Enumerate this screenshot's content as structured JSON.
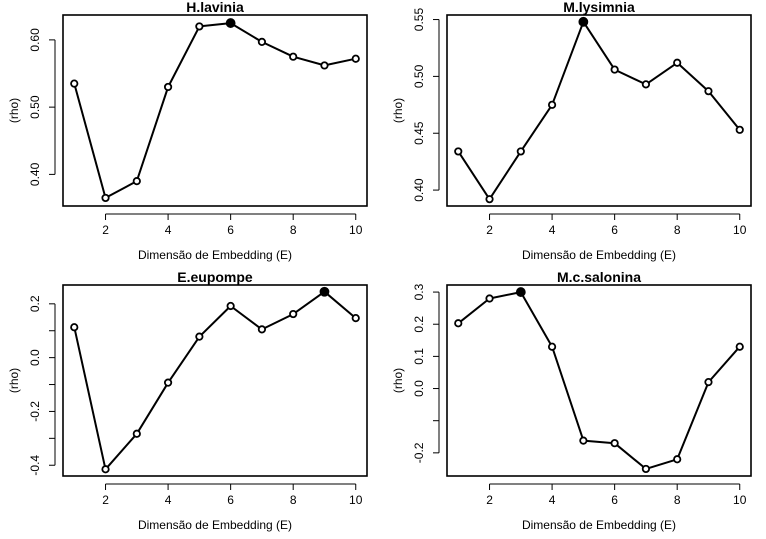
{
  "chart_data": [
    {
      "type": "line",
      "title": "H.lavinia",
      "xlabel": "Dimensão de Embedding (E)",
      "ylabel": "(rho)",
      "x": [
        1,
        2,
        3,
        4,
        5,
        6,
        7,
        8,
        9,
        10
      ],
      "series": [
        {
          "values": [
            0.535,
            0.365,
            0.39,
            0.53,
            0.62,
            0.625,
            0.597,
            0.575,
            0.562,
            0.572
          ]
        }
      ],
      "highlight_index": 5,
      "xlim": [
        0.64,
        10.36
      ],
      "ylim": [
        0.353,
        0.637
      ],
      "xticks": [
        2,
        4,
        6,
        8,
        10
      ],
      "xtick_labels": [
        "2",
        "4",
        "6",
        "8",
        "10"
      ],
      "yticks": [
        0.4,
        0.5,
        0.6
      ],
      "ytick_labels": [
        "0.40",
        "0.50",
        "0.60"
      ],
      "grid": false,
      "legend": "none"
    },
    {
      "type": "line",
      "title": "M.lysimnia",
      "xlabel": "Dimensão de Embedding (E)",
      "ylabel": "(rho)",
      "x": [
        1,
        2,
        3,
        4,
        5,
        6,
        7,
        8,
        9,
        10
      ],
      "series": [
        {
          "values": [
            0.434,
            0.392,
            0.434,
            0.475,
            0.548,
            0.506,
            0.493,
            0.512,
            0.487,
            0.453
          ]
        }
      ],
      "highlight_index": 4,
      "xlim": [
        0.64,
        10.36
      ],
      "ylim": [
        0.386,
        0.554
      ],
      "xticks": [
        2,
        4,
        6,
        8,
        10
      ],
      "xtick_labels": [
        "2",
        "4",
        "6",
        "8",
        "10"
      ],
      "yticks": [
        0.4,
        0.45,
        0.5,
        0.55
      ],
      "ytick_labels": [
        "0.40",
        "0.45",
        "0.50",
        "0.55"
      ],
      "grid": false,
      "legend": "none"
    },
    {
      "type": "line",
      "title": "E.eupompe",
      "xlabel": "Dimensão de Embedding (E)",
      "ylabel": "(rho)",
      "x": [
        1,
        2,
        3,
        4,
        5,
        6,
        7,
        8,
        9,
        10
      ],
      "series": [
        {
          "values": [
            0.113,
            -0.415,
            -0.283,
            -0.093,
            0.078,
            0.192,
            0.105,
            0.162,
            0.245,
            0.147
          ]
        }
      ],
      "highlight_index": 8,
      "xlim": [
        0.64,
        10.36
      ],
      "ylim": [
        -0.44,
        0.27
      ],
      "xticks": [
        2,
        4,
        6,
        8,
        10
      ],
      "xtick_labels": [
        "2",
        "4",
        "6",
        "8",
        "10"
      ],
      "yticks": [
        -0.4,
        -0.3,
        -0.2,
        -0.1,
        0.0,
        0.1,
        0.2
      ],
      "ytick_labels": [
        "-0.4",
        "",
        "-0.2",
        "",
        "0.0",
        "",
        "0.2"
      ],
      "grid": false,
      "legend": "none"
    },
    {
      "type": "line",
      "title": "M.c.salonina",
      "xlabel": "Dimensão de Embedding (E)",
      "ylabel": "(rho)",
      "x": [
        1,
        2,
        3,
        4,
        5,
        6,
        7,
        8,
        9,
        10
      ],
      "series": [
        {
          "values": [
            0.203,
            0.28,
            0.3,
            0.13,
            -0.162,
            -0.17,
            -0.25,
            -0.22,
            0.02,
            0.13
          ]
        }
      ],
      "highlight_index": 2,
      "xlim": [
        0.64,
        10.36
      ],
      "ylim": [
        -0.272,
        0.322
      ],
      "xticks": [
        2,
        4,
        6,
        8,
        10
      ],
      "xtick_labels": [
        "2",
        "4",
        "6",
        "8",
        "10"
      ],
      "yticks": [
        -0.2,
        -0.1,
        0.0,
        0.1,
        0.2,
        0.3
      ],
      "ytick_labels": [
        "-0.2",
        "",
        "0.0",
        "0.1",
        "0.2",
        "0.3"
      ],
      "grid": false,
      "legend": "none"
    }
  ]
}
